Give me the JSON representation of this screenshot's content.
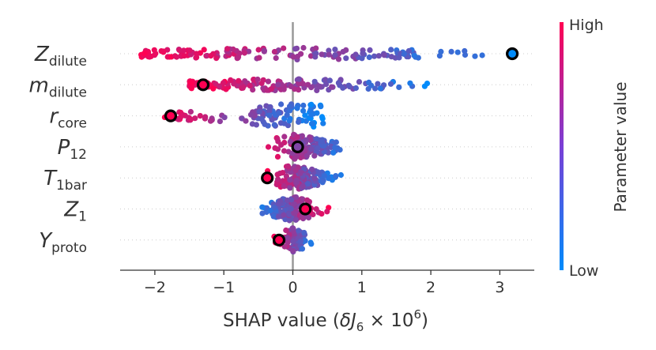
{
  "chart_data": {
    "type": "scatter",
    "subtype": "shap-beeswarm",
    "title": "",
    "xlabel": {
      "text": "SHAP value (",
      "var": "δJ",
      "var_sub": "6",
      "mult": " × 10",
      "exp": "6",
      "close": ")"
    },
    "ylabel": "",
    "xlim": [
      -2.5,
      3.5
    ],
    "xticks": [
      -2,
      -1,
      0,
      1,
      2,
      3
    ],
    "xtick_labels": [
      "−2",
      "−1",
      "0",
      "1",
      "2",
      "3"
    ],
    "zero_line": 0,
    "colorbar": {
      "title": "Parameter value",
      "high_label": "High",
      "low_label": "Low",
      "high_color": "#ff0052",
      "low_color": "#008bfb"
    },
    "features": [
      {
        "main": "Z",
        "sub": "dilute",
        "min": -2.2,
        "max": 3.2,
        "neg_color": "high",
        "density": "wide",
        "highlight": 3.18,
        "highlight_color": "low"
      },
      {
        "main": "m",
        "sub": "dilute",
        "min": -1.5,
        "max": 2.2,
        "neg_color": "high",
        "density": "wide",
        "highlight": -1.3,
        "highlight_color": "high"
      },
      {
        "main": "r",
        "sub": "core",
        "min": -1.9,
        "max": 0.46,
        "neg_color": "high",
        "density": "core",
        "highlight": -1.77,
        "highlight_color": "high"
      },
      {
        "main": "P",
        "sub": "12",
        "min": -0.45,
        "max": 0.9,
        "neg_color": "high",
        "density": "mid",
        "highlight": 0.07,
        "highlight_color": "mid"
      },
      {
        "main": "T",
        "sub": "1bar",
        "min": -0.45,
        "max": 0.75,
        "neg_color": "high",
        "density": "mid",
        "highlight": -0.37,
        "highlight_color": "high"
      },
      {
        "main": "Z",
        "sub": "1",
        "min": -0.6,
        "max": 0.6,
        "neg_color": "low",
        "density": "mid",
        "highlight": 0.18,
        "highlight_color": "high"
      },
      {
        "main": "Y",
        "sub": "proto",
        "min": -0.35,
        "max": 0.38,
        "neg_color": "high",
        "density": "narrow",
        "highlight": -0.2,
        "highlight_color": "high"
      }
    ]
  }
}
